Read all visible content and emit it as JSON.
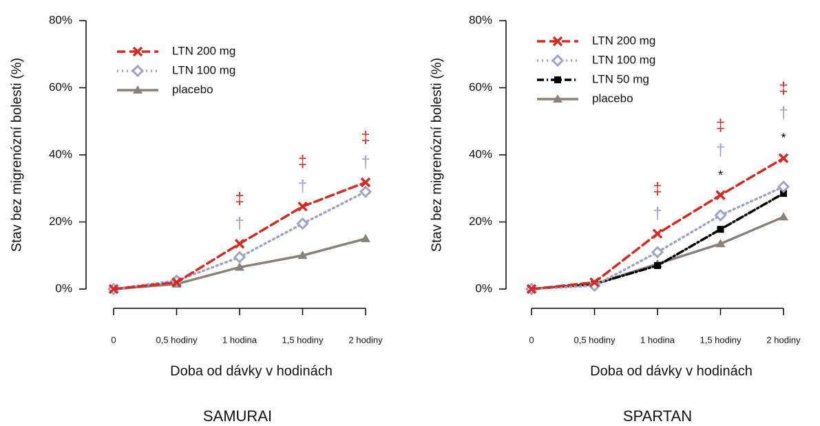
{
  "chart_data": [
    {
      "type": "line",
      "title": "SAMURAI",
      "xlabel": "Doba od dávky v hodinách",
      "ylabel": "Stav bez migrenózní bolesti (%)",
      "categories": [
        "0",
        "0,5 hodiny",
        "1 hodina",
        "1,5 hodiny",
        "2 hodiny"
      ],
      "ylim": [
        0,
        80
      ],
      "yticks": [
        {
          "value": 0,
          "label": "0%"
        },
        {
          "value": 20,
          "label": "20%"
        },
        {
          "value": 40,
          "label": "40%"
        },
        {
          "value": 60,
          "label": "60%"
        },
        {
          "value": 80,
          "label": "80%"
        }
      ],
      "legend": "upper left",
      "series": [
        {
          "name": "LTN 200 mg",
          "color": "#d42a20",
          "style": "dashed",
          "marker": "x",
          "values": [
            0,
            2,
            13.5,
            24.6,
            31.8
          ]
        },
        {
          "name": "LTN 100 mg",
          "color": "#9ea3c8",
          "style": "dotted",
          "marker": "diamond",
          "values": [
            0,
            2.5,
            9.5,
            19.5,
            29
          ]
        },
        {
          "name": "placebo",
          "color": "#8a817c",
          "style": "solid",
          "marker": "triangle",
          "values": [
            0,
            1.5,
            6.5,
            10,
            15
          ]
        }
      ],
      "annotations": [
        {
          "at": "1 hodina",
          "marks": [
            {
              "text": "‡",
              "color": "#d42a20"
            },
            {
              "text": "†",
              "color": "#9ea3c8"
            }
          ]
        },
        {
          "at": "1,5 hodiny",
          "marks": [
            {
              "text": "‡",
              "color": "#d42a20"
            },
            {
              "text": "†",
              "color": "#9ea3c8"
            }
          ]
        },
        {
          "at": "2 hodiny",
          "marks": [
            {
              "text": "‡",
              "color": "#d42a20"
            },
            {
              "text": "†",
              "color": "#9ea3c8"
            }
          ]
        }
      ]
    },
    {
      "type": "line",
      "title": "SPARTAN",
      "xlabel": "Doba od dávky v hodinách",
      "ylabel": "Stav bez migrenózní bolesti (%)",
      "categories": [
        "0",
        "0,5 hodiny",
        "1 hodina",
        "1,5 hodiny",
        "2 hodiny"
      ],
      "ylim": [
        0,
        80
      ],
      "yticks": [
        {
          "value": 0,
          "label": "0%"
        },
        {
          "value": 20,
          "label": "20%"
        },
        {
          "value": 40,
          "label": "40%"
        },
        {
          "value": 60,
          "label": "60%"
        },
        {
          "value": 80,
          "label": "80%"
        }
      ],
      "legend": "upper left",
      "series": [
        {
          "name": "LTN 200 mg",
          "color": "#d42a20",
          "style": "dashed",
          "marker": "x",
          "values": [
            0,
            2,
            16.5,
            28,
            39
          ]
        },
        {
          "name": "LTN 100 mg",
          "color": "#9ea3c8",
          "style": "dotted",
          "marker": "diamond",
          "values": [
            0,
            1,
            11,
            22,
            30.5
          ]
        },
        {
          "name": "LTN 50 mg",
          "color": "#000000",
          "style": "dashdot",
          "marker": "square",
          "values": [
            0,
            1.5,
            7,
            17.8,
            28.5
          ]
        },
        {
          "name": "placebo",
          "color": "#8a817c",
          "style": "solid",
          "marker": "triangle",
          "values": [
            0,
            1.5,
            7.5,
            13.5,
            21.5
          ]
        }
      ],
      "annotations": [
        {
          "at": "1 hodina",
          "marks": [
            {
              "text": "‡",
              "color": "#d42a20"
            },
            {
              "text": "†",
              "color": "#9ea3c8"
            }
          ]
        },
        {
          "at": "1,5 hodiny",
          "marks": [
            {
              "text": "‡",
              "color": "#d42a20"
            },
            {
              "text": "†",
              "color": "#9ea3c8"
            },
            {
              "text": "*",
              "color": "#000000"
            }
          ]
        },
        {
          "at": "2 hodiny",
          "marks": [
            {
              "text": "‡",
              "color": "#d42a20"
            },
            {
              "text": "†",
              "color": "#9ea3c8"
            },
            {
              "text": "*",
              "color": "#000000"
            }
          ]
        }
      ]
    }
  ]
}
